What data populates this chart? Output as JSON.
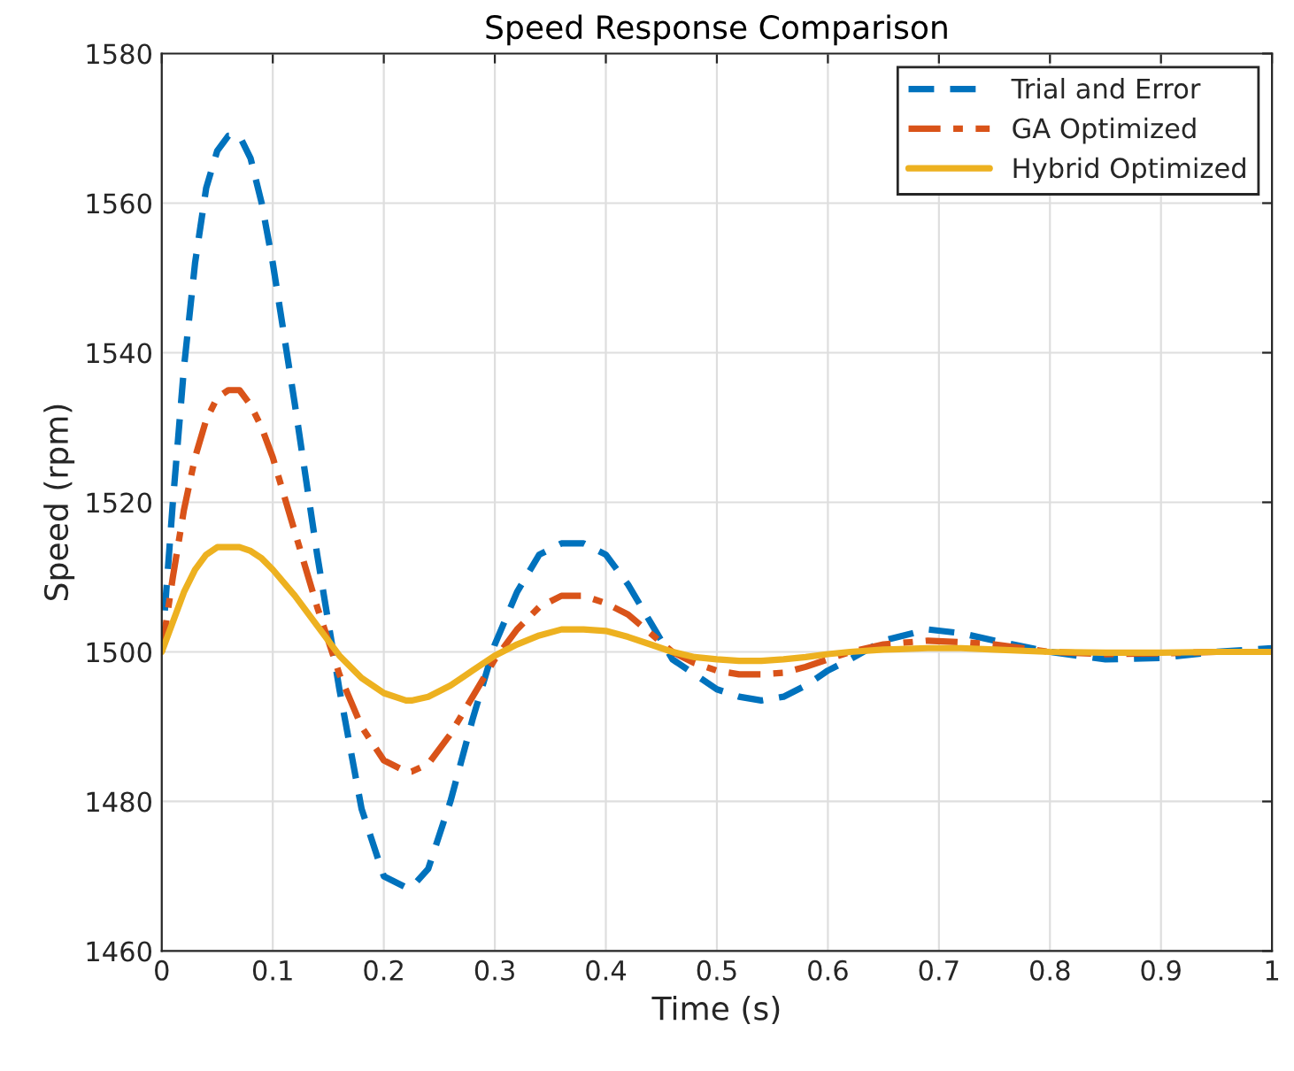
{
  "chart_data": {
    "type": "line",
    "title": "Speed Response Comparison",
    "xlabel": "Time (s)",
    "ylabel": "Speed (rpm)",
    "x": [
      0,
      0.01,
      0.02,
      0.03,
      0.04,
      0.05,
      0.06,
      0.07,
      0.08,
      0.09,
      0.1,
      0.12,
      0.14,
      0.16,
      0.18,
      0.2,
      0.22,
      0.225,
      0.24,
      0.26,
      0.28,
      0.3,
      0.32,
      0.34,
      0.36,
      0.38,
      0.4,
      0.42,
      0.44,
      0.46,
      0.48,
      0.5,
      0.52,
      0.54,
      0.56,
      0.58,
      0.6,
      0.62,
      0.65,
      0.69,
      0.72,
      0.75,
      0.8,
      0.85,
      0.9,
      0.95,
      1.0
    ],
    "series": [
      {
        "name": "Trial and Error",
        "color": "#0072bd",
        "line_style": "dashed",
        "values": [
          1500,
          1520,
          1538,
          1552,
          1562,
          1567,
          1569,
          1569,
          1566,
          1560,
          1552,
          1533,
          1513,
          1495,
          1479,
          1470,
          1468.5,
          1468.5,
          1471,
          1480,
          1491,
          1501,
          1508,
          1513,
          1514.5,
          1514.5,
          1513,
          1509,
          1504,
          1499,
          1497,
          1495,
          1494,
          1493.5,
          1494,
          1495.5,
          1497.5,
          1499,
          1501.5,
          1503,
          1502.5,
          1501.5,
          1500,
          1499,
          1499.2,
          1500,
          1500.5
        ]
      },
      {
        "name": "GA Optimized",
        "color": "#d95319",
        "line_style": "dashdot",
        "values": [
          1500,
          1510,
          1519,
          1526,
          1531,
          1534,
          1535,
          1535,
          1533,
          1530,
          1526,
          1516,
          1506,
          1497,
          1490,
          1485.5,
          1484,
          1484,
          1485,
          1489,
          1494,
          1499,
          1503,
          1506,
          1507.5,
          1507.5,
          1506.5,
          1505,
          1502.5,
          1500,
          1498.5,
          1497.5,
          1497,
          1497,
          1497.2,
          1498,
          1499,
          1500,
          1501,
          1501.5,
          1501.3,
          1501,
          1500,
          1499.7,
          1499.8,
          1500,
          1500
        ]
      },
      {
        "name": "Hybrid Optimized",
        "color": "#edb120",
        "line_style": "solid",
        "values": [
          1500,
          1504,
          1508,
          1511,
          1513,
          1514,
          1514,
          1514,
          1513.5,
          1512.5,
          1511,
          1507.5,
          1503.5,
          1499.5,
          1496.5,
          1494.5,
          1493.5,
          1493.5,
          1494,
          1495.5,
          1497.5,
          1499.5,
          1501,
          1502.2,
          1503,
          1503,
          1502.8,
          1502,
          1501,
          1500,
          1499.3,
          1499,
          1498.8,
          1498.8,
          1499,
          1499.3,
          1499.7,
          1500,
          1500.3,
          1500.5,
          1500.5,
          1500.3,
          1500,
          1499.9,
          1499.9,
          1500,
          1500
        ]
      }
    ],
    "xlim": [
      0,
      1
    ],
    "xticks": [
      0,
      0.1,
      0.2,
      0.3,
      0.4,
      0.5,
      0.6,
      0.7,
      0.8,
      0.9,
      1
    ],
    "ylim": [
      1460,
      1580
    ],
    "yticks": [
      1460,
      1480,
      1500,
      1520,
      1540,
      1560,
      1580
    ],
    "grid": true,
    "legend": "top right"
  }
}
